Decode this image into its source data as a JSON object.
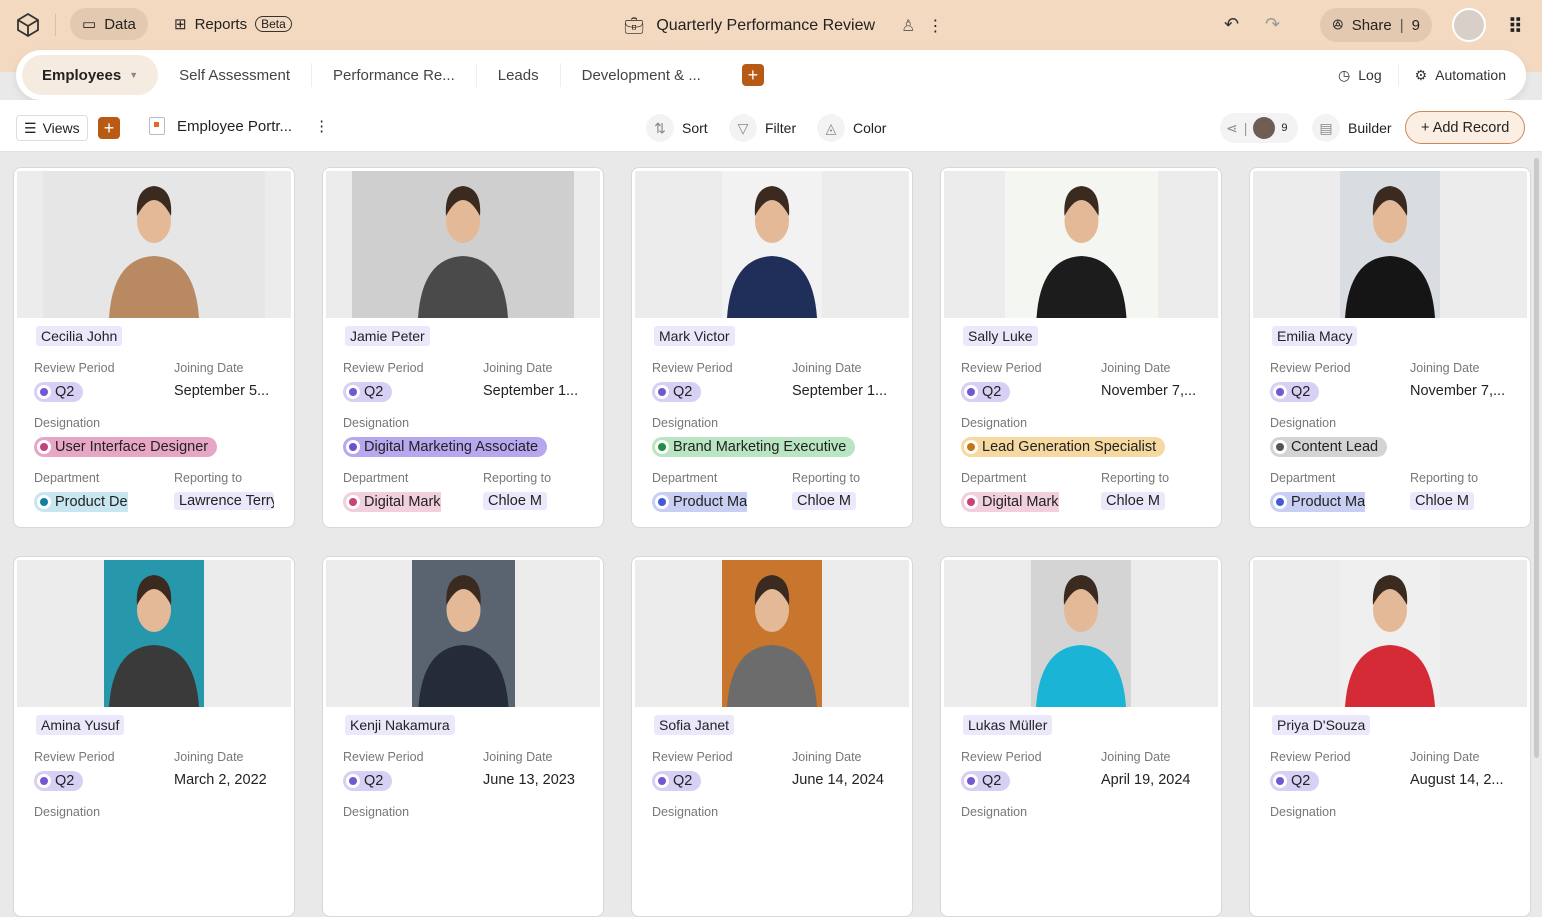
{
  "header": {
    "data_label": "Data",
    "reports_label": "Reports",
    "beta_badge": "Beta",
    "title": "Quarterly Performance Review",
    "share_label": "Share",
    "share_count": "9"
  },
  "tabs": [
    {
      "label": "Employees",
      "active": true
    },
    {
      "label": "Self Assessment"
    },
    {
      "label": "Performance Re..."
    },
    {
      "label": "Leads"
    },
    {
      "label": "Development & ..."
    }
  ],
  "tabs_right": {
    "log": "Log",
    "automation": "Automation"
  },
  "toolbar": {
    "views": "Views",
    "view_name": "Employee Portr...",
    "sort": "Sort",
    "filter": "Filter",
    "color": "Color",
    "collab_count": "9",
    "builder": "Builder",
    "add_record": "+ Add Record"
  },
  "labels": {
    "review_period": "Review Period",
    "joining_date": "Joining Date",
    "designation": "Designation",
    "department": "Department",
    "reporting_to": "Reporting to"
  },
  "colors": {
    "accent": "#b75a14",
    "header_bg": "#f3d9bf"
  },
  "cards": [
    {
      "name": "Cecilia John",
      "review": "Q2",
      "joining": "September 5...",
      "designation": "User Interface Designer",
      "des_color": "#e7a6c6",
      "des_dot": "#c2417e",
      "department": "Product De",
      "dep_color": "#c7e6ef",
      "dep_dot": "#11809f",
      "reporting": "Lawrence Terry",
      "photo_bg": "#e6e6e6",
      "photo_w": 222,
      "shirt": "#b98a62"
    },
    {
      "name": "Jamie Peter",
      "review": "Q2",
      "joining": "September 1...",
      "designation": "Digital Marketing Associate",
      "des_color": "#b7a7ee",
      "des_dot": "#6b4fd1",
      "department": "Digital Mark",
      "dep_color": "#f1cfdc",
      "dep_dot": "#c8437a",
      "reporting": "Chloe M",
      "photo_bg": "#cfcfcf",
      "photo_w": 222,
      "shirt": "#4a4a4a"
    },
    {
      "name": "Mark Victor",
      "review": "Q2",
      "joining": "September 1...",
      "designation": "Brand Marketing Executive",
      "des_color": "#b9e5c2",
      "des_dot": "#1e8f45",
      "department": "Product Ma",
      "dep_color": "#c9cff3",
      "dep_dot": "#4459d6",
      "reporting": "Chloe M",
      "photo_bg": "#f2f2f2",
      "photo_w": 100,
      "shirt": "#1f2f5a"
    },
    {
      "name": "Sally Luke",
      "review": "Q2",
      "joining": "November 7,...",
      "designation": "Lead Generation Specialist",
      "des_color": "#f6d9a0",
      "des_dot": "#c77414",
      "department": "Digital Mark",
      "dep_color": "#f1cfdc",
      "dep_dot": "#c8437a",
      "reporting": "Chloe M",
      "photo_bg": "#f4f7f1",
      "photo_w": 153,
      "shirt": "#1c1c1c"
    },
    {
      "name": "Emilia Macy",
      "review": "Q2",
      "joining": "November 7,...",
      "designation": "Content Lead",
      "des_color": "#d4d4d4",
      "des_dot": "#555555",
      "department": "Product Ma",
      "dep_color": "#c9cff3",
      "dep_dot": "#4459d6",
      "reporting": "Chloe M",
      "photo_bg": "#d9dde2",
      "photo_w": 100,
      "shirt": "#151515"
    },
    {
      "name": "Amina Yusuf",
      "review": "Q2",
      "joining": "March 2, 2022",
      "designation": "",
      "department": "",
      "reporting": "",
      "photo_bg": "#2797ab",
      "photo_w": 100,
      "shirt": "#3a3a3a"
    },
    {
      "name": "Kenji Nakamura",
      "review": "Q2",
      "joining": "June 13, 2023",
      "designation": "",
      "department": "",
      "reporting": "",
      "photo_bg": "#5a6470",
      "photo_w": 103,
      "shirt": "#262b3a"
    },
    {
      "name": "Sofia Janet",
      "review": "Q2",
      "joining": "June 14, 2024",
      "designation": "",
      "department": "",
      "reporting": "",
      "photo_bg": "#c8762e",
      "photo_w": 100,
      "shirt": "#6c6c6c"
    },
    {
      "name": "Lukas Müller",
      "review": "Q2",
      "joining": "April 19, 2024",
      "designation": "",
      "department": "",
      "reporting": "",
      "photo_bg": "#d4d4d4",
      "photo_w": 100,
      "shirt": "#19b4d6"
    },
    {
      "name": "Priya D'Souza",
      "review": "Q2",
      "joining": "August 14, 2...",
      "designation": "",
      "department": "",
      "reporting": "",
      "photo_bg": "#efefef",
      "photo_w": 100,
      "shirt": "#d52b36"
    }
  ]
}
